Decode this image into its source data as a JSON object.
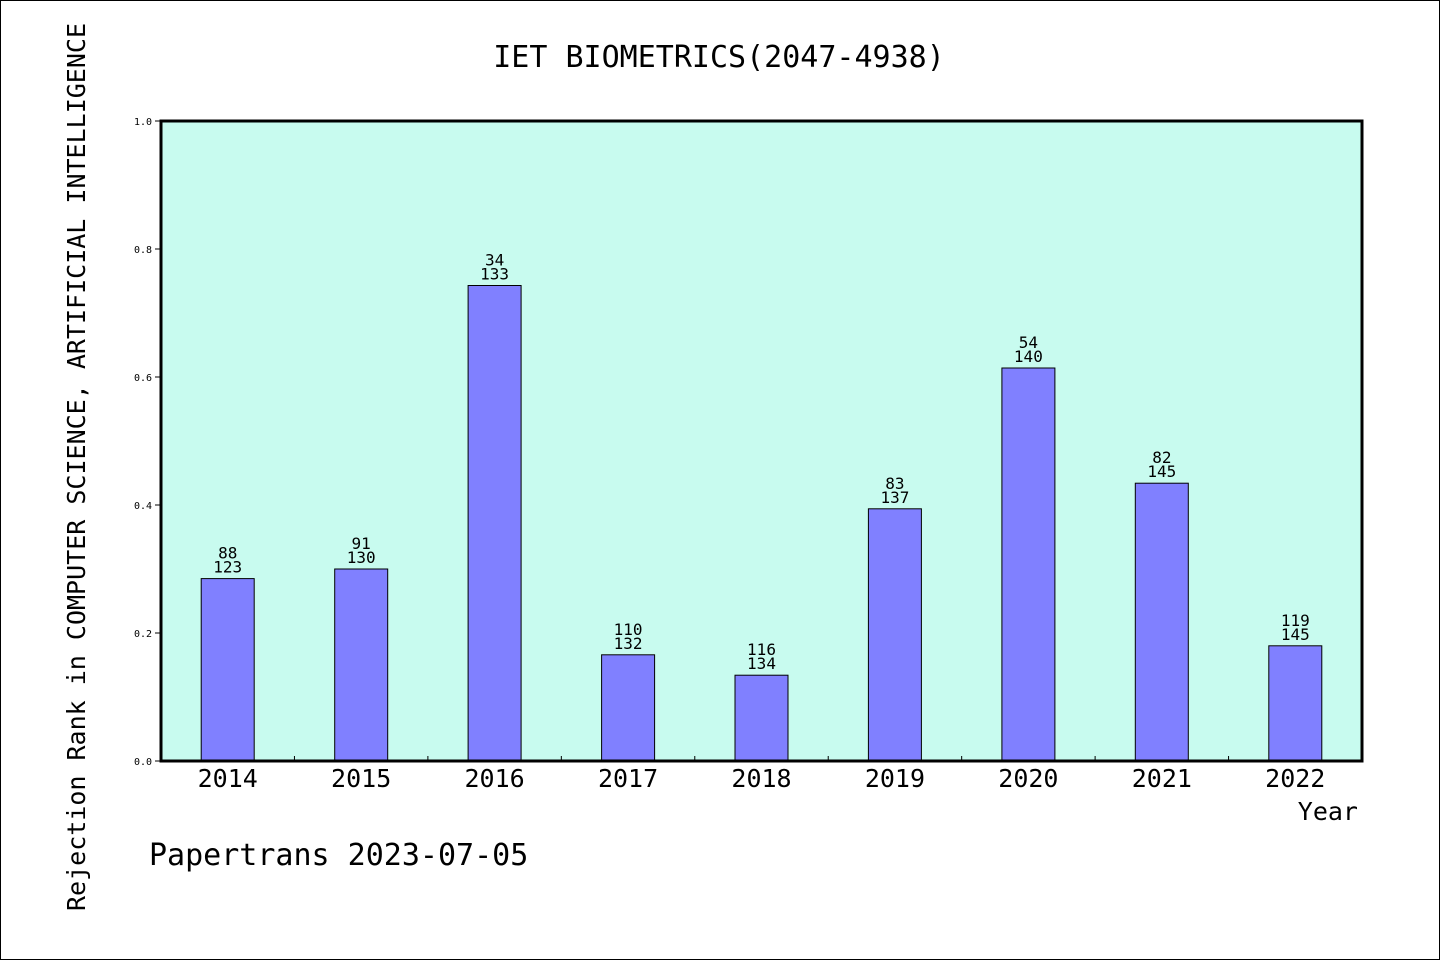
{
  "chart_data": {
    "type": "bar",
    "title": "IET BIOMETRICS(2047-4938)",
    "ylabel": "Rejection Rank in COMPUTER SCIENCE, ARTIFICIAL INTELLIGENCE",
    "xlabel": "Year",
    "ylim": [
      0,
      1.0
    ],
    "yticks": [
      "0.0",
      "0.2",
      "0.4",
      "0.6",
      "0.8",
      "1.0"
    ],
    "categories": [
      "2014",
      "2015",
      "2016",
      "2017",
      "2018",
      "2019",
      "2020",
      "2021",
      "2022"
    ],
    "values": [
      0.285,
      0.3,
      0.743,
      0.166,
      0.134,
      0.394,
      0.614,
      0.434,
      0.18
    ],
    "rank_labels": [
      "88",
      "91",
      "34",
      "110",
      "116",
      "83",
      "54",
      "82",
      "119"
    ],
    "total_labels": [
      "123",
      "130",
      "133",
      "132",
      "134",
      "137",
      "140",
      "145",
      "145"
    ],
    "plot_background": "#c8fbef",
    "bar_color": "#8080ff",
    "grid": false,
    "legend": "none"
  },
  "footer": {
    "watermark": "Papertrans 2023-07-05"
  }
}
